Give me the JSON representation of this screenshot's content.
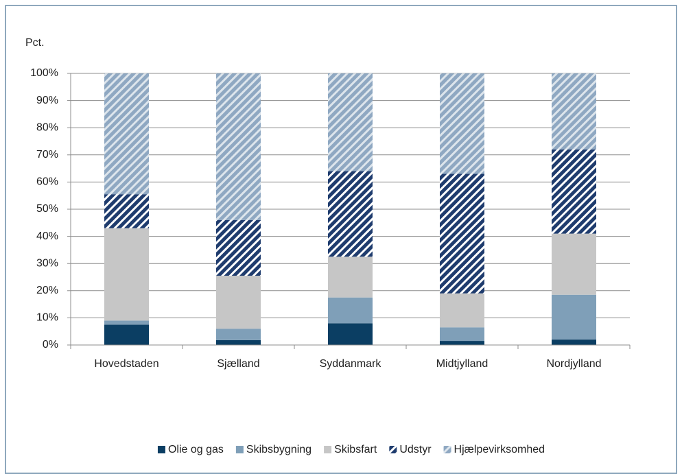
{
  "chart_data": {
    "type": "stacked_bar",
    "y_label": "Pct.",
    "categories": [
      "Hovedstaden",
      "Sjælland",
      "Syddanmark",
      "Midtjylland",
      "Nordjylland"
    ],
    "series": [
      {
        "name": "Olie og gas",
        "color": "#0b3e63",
        "values": [
          7.5,
          1.8,
          8,
          1.5,
          2
        ]
      },
      {
        "name": "Skibsbygning",
        "color": "#7f9fb8",
        "values": [
          1.5,
          4.2,
          9.5,
          5,
          16.5
        ]
      },
      {
        "name": "Skibsfart",
        "color": "#c6c6c6",
        "values": [
          34,
          19.5,
          15,
          12.5,
          22.5
        ]
      },
      {
        "name": "Udstyr",
        "color": "#1f3c6e",
        "hatch": "#ffffff",
        "values": [
          12.5,
          20.5,
          31.5,
          44,
          31
        ]
      },
      {
        "name": "Hjælpevirksomhed",
        "color": "#8fa8c2",
        "hatch": "#dde5ec",
        "values": [
          44.5,
          54,
          36,
          37,
          28
        ]
      }
    ],
    "ylim": [
      0,
      100
    ],
    "yticks": [
      {
        "value": 0,
        "label": "0%"
      },
      {
        "value": 10,
        "label": "10%"
      },
      {
        "value": 20,
        "label": "20%"
      },
      {
        "value": 30,
        "label": "30%"
      },
      {
        "value": 40,
        "label": "40%"
      },
      {
        "value": 50,
        "label": "50%"
      },
      {
        "value": 60,
        "label": "60%"
      },
      {
        "value": 70,
        "label": "70%"
      },
      {
        "value": 80,
        "label": "80%"
      },
      {
        "value": 90,
        "label": "90%"
      },
      {
        "value": 100,
        "label": "100%"
      }
    ],
    "grid": true,
    "legend": "bottom"
  }
}
